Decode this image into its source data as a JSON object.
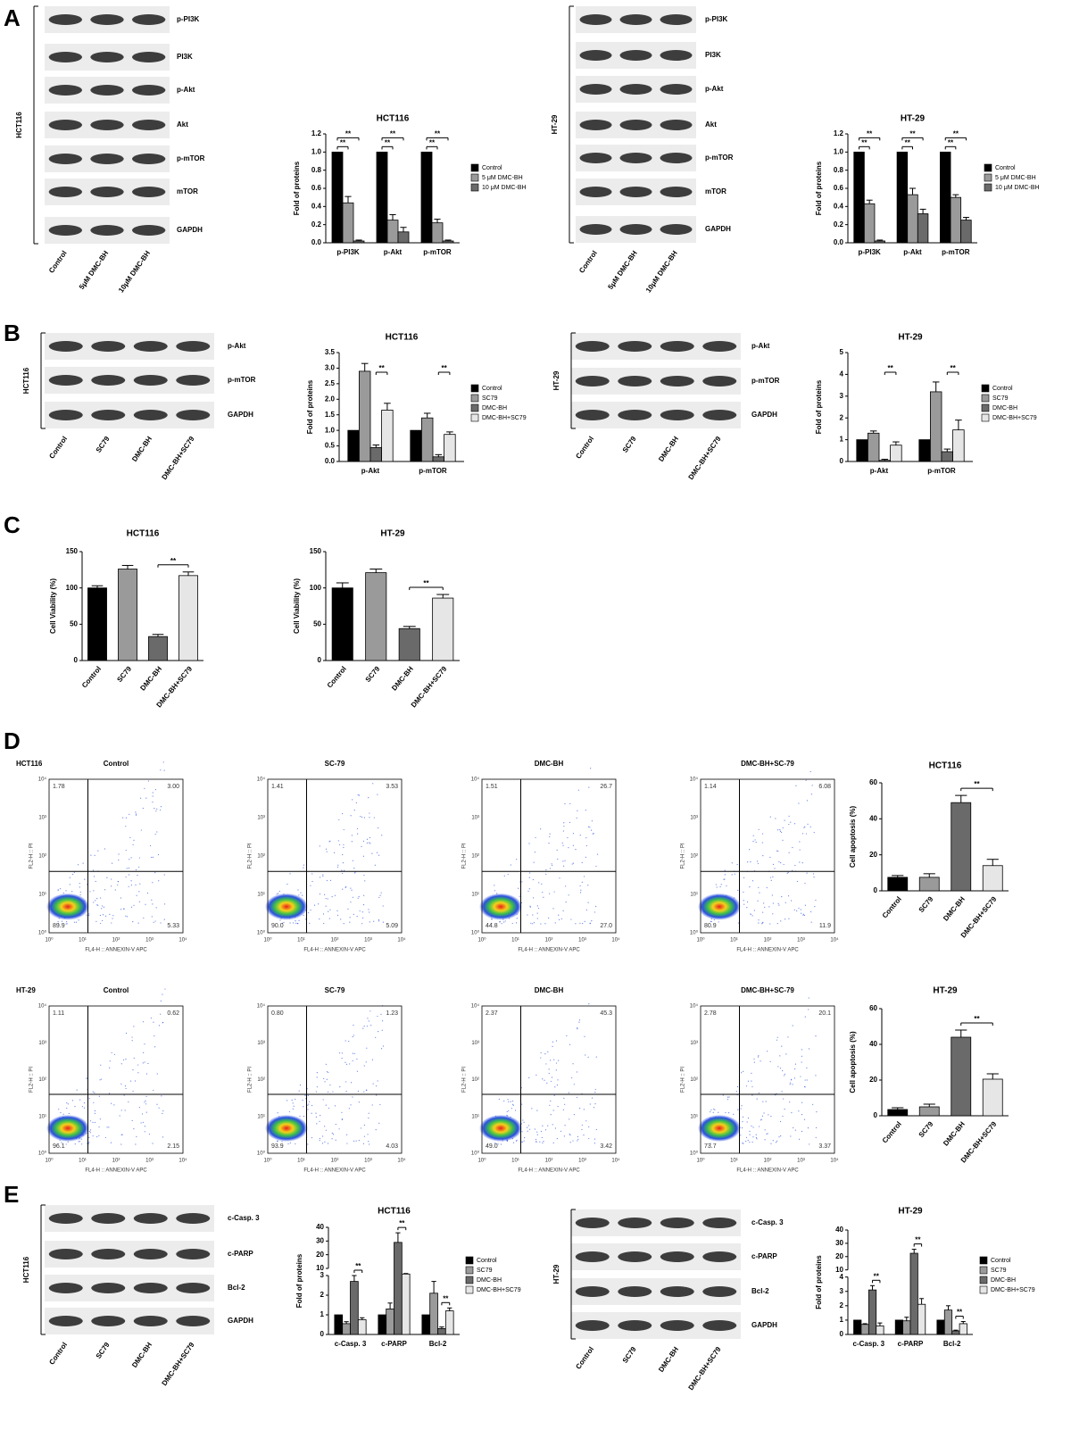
{
  "panels": [
    "A",
    "B",
    "C",
    "D",
    "E"
  ],
  "blots": [
    {
      "cell": "HCT116",
      "rows": [
        "p-PI3K",
        "PI3K",
        "p-Akt",
        "Akt",
        "p-mTOR",
        "mTOR",
        "GAPDH"
      ],
      "lanes": [
        "Control",
        "5μM DMC-BH",
        "10μM DMC-BH"
      ]
    },
    {
      "cell": "HT-29",
      "rows": [
        "p-PI3K",
        "PI3K",
        "p-Akt",
        "Akt",
        "p-mTOR",
        "mTOR",
        "GAPDH"
      ],
      "lanes": [
        "Control",
        "5μM DMC-BH",
        "10μM DMC-BH"
      ]
    },
    {
      "cell": "HCT116",
      "rows": [
        "p-Akt",
        "p-mTOR",
        "GAPDH"
      ],
      "lanes": [
        "Control",
        "SC79",
        "DMC-BH",
        "DMC-BH+SC79"
      ]
    },
    {
      "cell": "HT-29",
      "rows": [
        "p-Akt",
        "p-mTOR",
        "GAPDH"
      ],
      "lanes": [
        "Control",
        "SC79",
        "DMC-BH",
        "DMC-BH+SC79"
      ]
    },
    {
      "cell": "HCT116",
      "rows": [
        "c-Casp. 3",
        "c-PARP",
        "Bcl-2",
        "GAPDH"
      ],
      "lanes": [
        "Control",
        "SC79",
        "DMC-BH",
        "DMC-BH+SC79"
      ]
    },
    {
      "cell": "HT-29",
      "rows": [
        "c-Casp. 3",
        "c-PARP",
        "Bcl-2",
        "GAPDH"
      ],
      "lanes": [
        "Control",
        "SC79",
        "DMC-BH",
        "DMC-BH+SC79"
      ]
    }
  ],
  "flow": {
    "x_label": "FL4-H :: ANNEXIN-V APC",
    "y_label": "FL2-H :: PI",
    "ticks": [
      "10⁰",
      "10¹",
      "10²",
      "10³",
      "10⁴"
    ],
    "rows": [
      {
        "cell": "HCT116",
        "plots": [
          {
            "title": "Control",
            "ul": "1.78",
            "ur": "3.00",
            "ll": "89.9",
            "lr": "5.33"
          },
          {
            "title": "SC-79",
            "ul": "1.41",
            "ur": "3.53",
            "ll": "90.0",
            "lr": "5.09"
          },
          {
            "title": "DMC-BH",
            "ul": "1.51",
            "ur": "26.7",
            "ll": "44.8",
            "lr": "27.0"
          },
          {
            "title": "DMC-BH+SC-79",
            "ul": "1.14",
            "ur": "6.08",
            "ll": "80.9",
            "lr": "11.9"
          }
        ]
      },
      {
        "cell": "HT-29",
        "plots": [
          {
            "title": "Control",
            "ul": "1.11",
            "ur": "0.62",
            "ll": "96.1",
            "lr": "2.15"
          },
          {
            "title": "SC-79",
            "ul": "0.80",
            "ur": "1.23",
            "ll": "93.9",
            "lr": "4.03"
          },
          {
            "title": "DMC-BH",
            "ul": "2.37",
            "ur": "45.3",
            "ll": "49.0",
            "lr": "3.42"
          },
          {
            "title": "DMC-BH+SC-79",
            "ul": "2.78",
            "ur": "20.1",
            "ll": "73.7",
            "lr": "3.37"
          }
        ]
      }
    ]
  },
  "chart_data": [
    {
      "type": "bar",
      "title": "HCT116",
      "y_label": "Fold of proteins",
      "categories": [
        "p-PI3K",
        "p-Akt",
        "p-mTOR"
      ],
      "series": [
        {
          "name": "Control",
          "color": "#000000",
          "values": [
            1,
            1,
            1
          ],
          "errors": [
            null,
            null,
            null
          ]
        },
        {
          "name": "5 μM DMC-BH",
          "color": "#9a9a9a",
          "values": [
            0.44,
            0.25,
            0.22
          ],
          "errors": [
            0.07,
            0.06,
            0.04
          ]
        },
        {
          "name": "10 μM DMC-BH",
          "color": "#6a6a6a",
          "values": [
            0.02,
            0.12,
            0.02
          ],
          "errors": [
            0.01,
            0.05,
            0.01
          ]
        }
      ],
      "ylim": [
        0,
        1.2
      ],
      "yticks": [
        {
          "value": 0,
          "label": "0.0"
        },
        {
          "value": 0.2,
          "label": "0.2"
        },
        {
          "value": 0.4,
          "label": "0.4"
        },
        {
          "value": 0.6,
          "label": "0.6"
        },
        {
          "value": 0.8,
          "label": "0.8"
        },
        {
          "value": 1,
          "label": "1.0"
        },
        {
          "value": 1.2,
          "label": "1.2"
        }
      ],
      "annotations": [
        {
          "text": "**",
          "category": "p-PI3K",
          "series": [
            "Control",
            "5 μM DMC-BH"
          ]
        },
        {
          "text": "**",
          "category": "p-PI3K",
          "series": [
            "Control",
            "10 μM DMC-BH"
          ]
        },
        {
          "text": "**",
          "category": "p-Akt",
          "series": [
            "Control",
            "5 μM DMC-BH"
          ]
        },
        {
          "text": "**",
          "category": "p-Akt",
          "series": [
            "Control",
            "10 μM DMC-BH"
          ]
        },
        {
          "text": "**",
          "category": "p-mTOR",
          "series": [
            "Control",
            "5 μM DMC-BH"
          ]
        },
        {
          "text": "**",
          "category": "p-mTOR",
          "series": [
            "Control",
            "10 μM DMC-BH"
          ]
        }
      ]
    },
    {
      "type": "bar",
      "title": "HT-29",
      "y_label": "Fold of proteins",
      "categories": [
        "p-PI3K",
        "p-Akt",
        "p-mTOR"
      ],
      "series": [
        {
          "name": "Control",
          "color": "#000000",
          "values": [
            1,
            1,
            1
          ],
          "errors": [
            null,
            null,
            null
          ]
        },
        {
          "name": "5 μM DMC-BH",
          "color": "#9a9a9a",
          "values": [
            0.43,
            0.53,
            0.5
          ],
          "errors": [
            0.04,
            0.07,
            0.03
          ]
        },
        {
          "name": "10 μM DMC-BH",
          "color": "#6a6a6a",
          "values": [
            0.02,
            0.32,
            0.25
          ],
          "errors": [
            0.01,
            0.05,
            0.03
          ]
        }
      ],
      "ylim": [
        0,
        1.2
      ],
      "yticks": [
        {
          "value": 0,
          "label": "0.0"
        },
        {
          "value": 0.2,
          "label": "0.2"
        },
        {
          "value": 0.4,
          "label": "0.4"
        },
        {
          "value": 0.6,
          "label": "0.6"
        },
        {
          "value": 0.8,
          "label": "0.8"
        },
        {
          "value": 1,
          "label": "1.0"
        },
        {
          "value": 1.2,
          "label": "1.2"
        }
      ],
      "annotations": [
        {
          "text": "**",
          "category": "p-PI3K",
          "series": [
            "Control",
            "5 μM DMC-BH"
          ]
        },
        {
          "text": "**",
          "category": "p-PI3K",
          "series": [
            "Control",
            "10 μM DMC-BH"
          ]
        },
        {
          "text": "**",
          "category": "p-Akt",
          "series": [
            "Control",
            "5 μM DMC-BH"
          ]
        },
        {
          "text": "**",
          "category": "p-Akt",
          "series": [
            "Control",
            "10 μM DMC-BH"
          ]
        },
        {
          "text": "**",
          "category": "p-mTOR",
          "series": [
            "Control",
            "5 μM DMC-BH"
          ]
        },
        {
          "text": "**",
          "category": "p-mTOR",
          "series": [
            "Control",
            "10 μM DMC-BH"
          ]
        }
      ]
    },
    {
      "type": "bar",
      "title": "HCT116",
      "y_label": "Fold of proteins",
      "categories": [
        "p-Akt",
        "p-mTOR"
      ],
      "series": [
        {
          "name": "Control",
          "color": "#000000",
          "values": [
            1,
            1
          ],
          "errors": [
            null,
            null
          ]
        },
        {
          "name": "SC79",
          "color": "#9a9a9a",
          "values": [
            2.9,
            1.4
          ],
          "errors": [
            0.25,
            0.15
          ]
        },
        {
          "name": "DMC-BH",
          "color": "#6a6a6a",
          "values": [
            0.45,
            0.15
          ],
          "errors": [
            0.08,
            0.07
          ]
        },
        {
          "name": "DMC-BH+SC79",
          "color": "#e6e6e6",
          "values": [
            1.65,
            0.87
          ],
          "errors": [
            0.22,
            0.08
          ]
        }
      ],
      "ylim": [
        0,
        3.5
      ],
      "yticks": [
        {
          "value": 0,
          "label": "0.0"
        },
        {
          "value": 0.5,
          "label": "0.5"
        },
        {
          "value": 1,
          "label": "1.0"
        },
        {
          "value": 1.5,
          "label": "1.5"
        },
        {
          "value": 2,
          "label": "2.0"
        },
        {
          "value": 2.5,
          "label": "2.5"
        },
        {
          "value": 3,
          "label": "3.0"
        },
        {
          "value": 3.5,
          "label": "3.5"
        }
      ],
      "annotations": [
        {
          "text": "**",
          "category": "p-Akt",
          "series": [
            "DMC-BH",
            "DMC-BH+SC79"
          ]
        },
        {
          "text": "**",
          "category": "p-mTOR",
          "series": [
            "DMC-BH",
            "DMC-BH+SC79"
          ]
        }
      ]
    },
    {
      "type": "bar",
      "title": "HT-29",
      "y_label": "Fold of proteins",
      "categories": [
        "p-Akt",
        "p-mTOR"
      ],
      "series": [
        {
          "name": "Control",
          "color": "#000000",
          "values": [
            1,
            1
          ],
          "errors": [
            null,
            null
          ]
        },
        {
          "name": "SC79",
          "color": "#9a9a9a",
          "values": [
            1.3,
            3.2
          ],
          "errors": [
            0.1,
            0.45
          ]
        },
        {
          "name": "DMC-BH",
          "color": "#6a6a6a",
          "values": [
            0.05,
            0.45
          ],
          "errors": [
            0.05,
            0.12
          ]
        },
        {
          "name": "DMC-BH+SC79",
          "color": "#e6e6e6",
          "values": [
            0.75,
            1.45
          ],
          "errors": [
            0.15,
            0.45
          ]
        }
      ],
      "ylim": [
        0,
        5
      ],
      "yticks": [
        0,
        1,
        2,
        3,
        4,
        5
      ],
      "annotations": [
        {
          "text": "**",
          "category": "p-Akt",
          "series": [
            "DMC-BH",
            "DMC-BH+SC79"
          ]
        },
        {
          "text": "**",
          "category": "p-mTOR",
          "series": [
            "DMC-BH",
            "DMC-BH+SC79"
          ]
        }
      ]
    },
    {
      "type": "bar",
      "title": "HCT116",
      "y_label": "Cell Viability (%)",
      "categories": [
        "Control",
        "SC79",
        "DMC-BH",
        "DMC-BH+SC79"
      ],
      "values": [
        100,
        126,
        33,
        117
      ],
      "errors": [
        3,
        5,
        3,
        5
      ],
      "colors": [
        "#000000",
        "#9a9a9a",
        "#6a6a6a",
        "#e6e6e6"
      ],
      "ylim": [
        0,
        150
      ],
      "yticks": [
        0,
        50,
        100,
        150
      ],
      "annotations": [
        {
          "text": "**",
          "between": [
            "DMC-BH",
            "DMC-BH+SC79"
          ]
        }
      ]
    },
    {
      "type": "bar",
      "title": "HT-29",
      "y_label": "Cell Viability (%)",
      "categories": [
        "Control",
        "SC79",
        "DMC-BH",
        "DMC-BH+SC79"
      ],
      "values": [
        100,
        121,
        44,
        86
      ],
      "errors": [
        7,
        5,
        3,
        5
      ],
      "colors": [
        "#000000",
        "#9a9a9a",
        "#6a6a6a",
        "#e6e6e6"
      ],
      "ylim": [
        0,
        150
      ],
      "yticks": [
        0,
        50,
        100,
        150
      ],
      "annotations": [
        {
          "text": "**",
          "between": [
            "DMC-BH",
            "DMC-BH+SC79"
          ]
        }
      ]
    },
    {
      "type": "bar",
      "title": "HCT116",
      "y_label": "Cell apoptosis (%)",
      "categories": [
        "Control",
        "SC79",
        "DMC-BH",
        "DMC-BH+SC79"
      ],
      "values": [
        7.5,
        7.5,
        49,
        14
      ],
      "errors": [
        1,
        2,
        4,
        3.5
      ],
      "colors": [
        "#000000",
        "#9a9a9a",
        "#6a6a6a",
        "#e6e6e6"
      ],
      "ylim": [
        0,
        60
      ],
      "yticks": [
        0,
        20,
        40,
        60
      ],
      "annotations": [
        {
          "text": "**",
          "between": [
            "DMC-BH",
            "DMC-BH+SC79"
          ]
        }
      ]
    },
    {
      "type": "bar",
      "title": "HT-29",
      "y_label": "Cell apoptosis (%)",
      "categories": [
        "Control",
        "SC79",
        "DMC-BH",
        "DMC-BH+SC79"
      ],
      "values": [
        3.5,
        5,
        44,
        20.5
      ],
      "errors": [
        1,
        1.5,
        4,
        3
      ],
      "colors": [
        "#000000",
        "#9a9a9a",
        "#6a6a6a",
        "#e6e6e6"
      ],
      "ylim": [
        0,
        60
      ],
      "yticks": [
        0,
        20,
        40,
        60
      ],
      "annotations": [
        {
          "text": "**",
          "between": [
            "DMC-BH",
            "DMC-BH+SC79"
          ]
        }
      ]
    },
    {
      "type": "bar",
      "title": "HCT116",
      "y_label": "Fold of proteins",
      "categories": [
        "c-Casp. 3",
        "c-PARP",
        "Bcl-2"
      ],
      "series": [
        {
          "name": "Control",
          "color": "#000000",
          "values": [
            1,
            1,
            1
          ],
          "errors": [
            null,
            null,
            null
          ]
        },
        {
          "name": "SC79",
          "color": "#9a9a9a",
          "values": [
            0.55,
            1.3,
            2.1
          ],
          "errors": [
            0.1,
            0.3,
            0.6
          ]
        },
        {
          "name": "DMC-BH",
          "color": "#6a6a6a",
          "values": [
            2.7,
            29,
            0.3
          ],
          "errors": [
            0.3,
            7,
            0.08
          ]
        },
        {
          "name": "DMC-BH+SC79",
          "color": "#e6e6e6",
          "values": [
            0.75,
            4.5,
            1.2
          ],
          "errors": [
            0.1,
            0.5,
            0.15
          ]
        }
      ],
      "ylim": [
        0,
        40
      ],
      "axis_break": [
        3,
        10
      ],
      "yticks": [
        0,
        1,
        2,
        3,
        10,
        20,
        30,
        40
      ],
      "annotations": [
        {
          "text": "**",
          "category": "c-Casp. 3",
          "series": [
            "DMC-BH",
            "DMC-BH+SC79"
          ]
        },
        {
          "text": "**",
          "category": "c-PARP",
          "series": [
            "DMC-BH",
            "DMC-BH+SC79"
          ]
        },
        {
          "text": "**",
          "category": "Bcl-2",
          "series": [
            "DMC-BH",
            "DMC-BH+SC79"
          ]
        }
      ]
    },
    {
      "type": "bar",
      "title": "HT-29",
      "y_label": "Fold of proteins",
      "categories": [
        "c-Casp. 3",
        "c-PARP",
        "Bcl-2"
      ],
      "series": [
        {
          "name": "Control",
          "color": "#000000",
          "values": [
            1,
            1,
            1
          ],
          "errors": [
            null,
            null,
            null
          ]
        },
        {
          "name": "SC79",
          "color": "#9a9a9a",
          "values": [
            0.7,
            0.95,
            1.7
          ],
          "errors": [
            0.05,
            0.25,
            0.3
          ]
        },
        {
          "name": "DMC-BH",
          "color": "#6a6a6a",
          "values": [
            3.1,
            22.5,
            0.25
          ],
          "errors": [
            0.3,
            3,
            0.05
          ]
        },
        {
          "name": "DMC-BH+SC79",
          "color": "#e6e6e6",
          "values": [
            0.6,
            2.1,
            0.75
          ],
          "errors": [
            0.2,
            0.4,
            0.15
          ]
        }
      ],
      "ylim": [
        0,
        40
      ],
      "axis_break": [
        4,
        10
      ],
      "yticks": [
        0,
        1,
        2,
        3,
        4,
        10,
        20,
        30,
        40
      ],
      "annotations": [
        {
          "text": "**",
          "category": "c-Casp. 3",
          "series": [
            "DMC-BH",
            "DMC-BH+SC79"
          ]
        },
        {
          "text": "**",
          "category": "c-PARP",
          "series": [
            "DMC-BH",
            "DMC-BH+SC79"
          ]
        },
        {
          "text": "**",
          "category": "Bcl-2",
          "series": [
            "DMC-BH",
            "DMC-BH+SC79"
          ]
        }
      ]
    }
  ]
}
